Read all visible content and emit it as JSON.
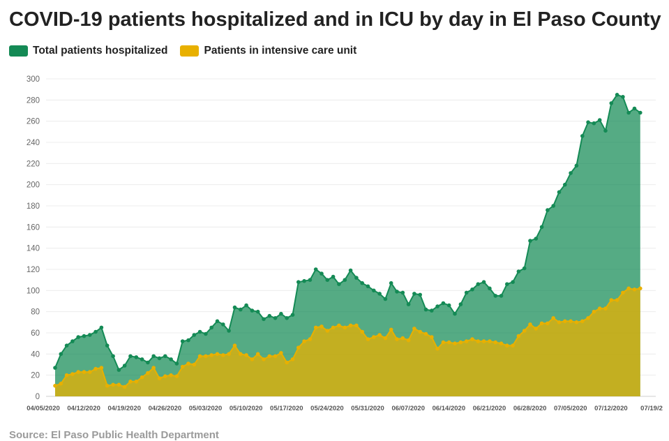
{
  "title": "COVID-19 patients hospitalized and in ICU by day in El Paso County",
  "source": "Source: El Paso Public Health Department",
  "colors": {
    "hospitalized": "#148a55",
    "icu": "#e8b000"
  },
  "chart_data": {
    "type": "area",
    "title": "COVID-19 patients hospitalized and in ICU by day in El Paso County",
    "x_start": "04/05/2020",
    "x_tick_labels": [
      "04/05/2020",
      "04/12/2020",
      "04/19/2020",
      "04/26/2020",
      "05/03/2020",
      "05/10/2020",
      "05/17/2020",
      "05/24/2020",
      "05/31/2020",
      "06/07/2020",
      "06/14/2020",
      "06/21/2020",
      "06/28/2020",
      "07/05/2020",
      "07/12/2020",
      "07/19/2"
    ],
    "ylim": [
      0,
      300
    ],
    "y_ticks": [
      0,
      20,
      40,
      60,
      80,
      100,
      120,
      140,
      160,
      180,
      200,
      220,
      240,
      260,
      280,
      300
    ],
    "grid": true,
    "legend_position": "top-left",
    "series": [
      {
        "name": "Total patients hospitalized",
        "values": [
          27,
          40,
          48,
          52,
          56,
          57,
          58,
          61,
          65,
          48,
          38,
          25,
          29,
          38,
          37,
          35,
          32,
          38,
          36,
          38,
          35,
          31,
          52,
          53,
          58,
          61,
          59,
          65,
          71,
          68,
          62,
          84,
          82,
          86,
          81,
          80,
          73,
          76,
          74,
          78,
          74,
          77,
          108,
          109,
          110,
          120,
          116,
          110,
          113,
          106,
          110,
          119,
          112,
          107,
          104,
          100,
          97,
          92,
          107,
          99,
          98,
          87,
          97,
          96,
          82,
          81,
          85,
          88,
          86,
          78,
          87,
          98,
          101,
          106,
          108,
          102,
          95,
          95,
          106,
          108,
          118,
          121,
          147,
          149,
          160,
          176,
          180,
          193,
          200,
          211,
          218,
          246,
          259,
          258,
          261,
          251,
          277,
          285,
          283,
          268,
          272,
          268
        ]
      },
      {
        "name": "Patients in intensive care unit",
        "values": [
          10,
          12,
          20,
          21,
          23,
          23,
          23,
          26,
          27,
          10,
          11,
          11,
          9,
          14,
          14,
          18,
          22,
          27,
          17,
          19,
          20,
          19,
          28,
          31,
          30,
          38,
          38,
          39,
          40,
          39,
          40,
          48,
          40,
          39,
          35,
          40,
          35,
          38,
          38,
          41,
          32,
          35,
          46,
          52,
          54,
          65,
          66,
          62,
          65,
          67,
          65,
          67,
          67,
          61,
          54,
          56,
          58,
          55,
          63,
          54,
          55,
          53,
          64,
          61,
          59,
          56,
          45,
          51,
          51,
          50,
          51,
          52,
          54,
          52,
          52,
          52,
          51,
          50,
          48,
          48,
          57,
          62,
          68,
          64,
          69,
          69,
          74,
          70,
          71,
          71,
          70,
          71,
          74,
          80,
          83,
          83,
          91,
          91,
          98,
          102,
          101,
          102
        ]
      }
    ]
  }
}
